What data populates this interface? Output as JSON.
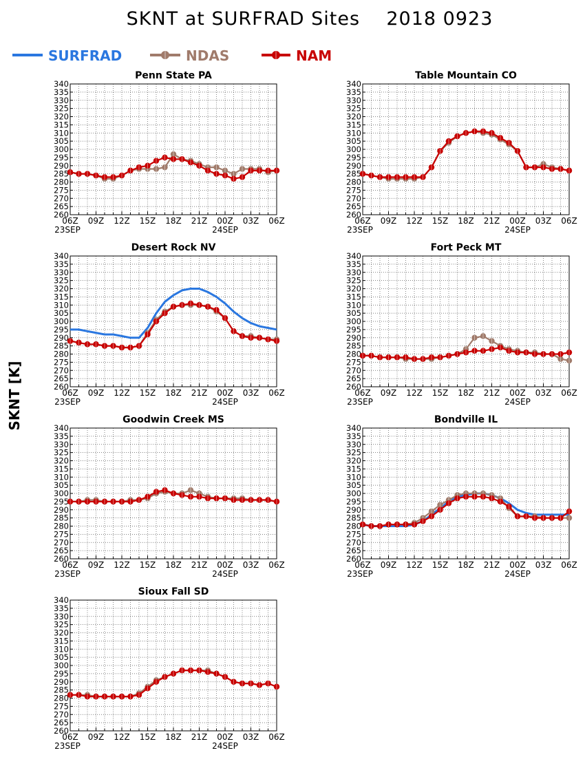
{
  "title": "SKNT at SURFRAD Sites    2018 0923",
  "y_axis_label": "SKNT [K]",
  "legend": [
    {
      "name": "SURFRAD",
      "color": "#2a77e0",
      "markers": false
    },
    {
      "name": "NDAS",
      "color": "#a07b6b",
      "markers": true
    },
    {
      "name": "NAM",
      "color": "#c80000",
      "markers": true
    }
  ],
  "chart_data": [
    {
      "type": "line",
      "title": "Penn State PA",
      "x_ticks": [
        "06Z",
        "09Z",
        "12Z",
        "15Z",
        "18Z",
        "21Z",
        "00Z",
        "03Z",
        "06Z"
      ],
      "date_labels": [
        "23SEP",
        "24SEP"
      ],
      "y_ticks": [
        260,
        265,
        270,
        275,
        280,
        285,
        290,
        295,
        300,
        305,
        310,
        315,
        320,
        325,
        330,
        335,
        340
      ],
      "ylim": [
        260,
        340
      ],
      "x_hours_since_06Z_23SEP": [
        0,
        1,
        2,
        3,
        4,
        5,
        6,
        7,
        8,
        9,
        10,
        11,
        12,
        13,
        14,
        15,
        16,
        17,
        18,
        19,
        20,
        21,
        22,
        23,
        24
      ],
      "series": [
        {
          "name": "NDAS",
          "values": [
            286,
            285,
            285,
            284,
            282,
            282,
            284,
            287,
            288,
            288,
            288,
            289,
            297,
            294,
            293,
            291,
            289,
            289,
            287,
            285,
            288,
            288,
            288,
            286,
            287
          ]
        },
        {
          "name": "NAM",
          "values": [
            286,
            285,
            285,
            284,
            283,
            283,
            284,
            287,
            289,
            290,
            293,
            295,
            294,
            294,
            292,
            290,
            287,
            285,
            284,
            282,
            283,
            287,
            287,
            287,
            287
          ]
        }
      ]
    },
    {
      "type": "line",
      "title": "Table Mountain CO",
      "x_ticks": [
        "06Z",
        "09Z",
        "12Z",
        "15Z",
        "18Z",
        "21Z",
        "00Z",
        "03Z",
        "06Z"
      ],
      "date_labels": [
        "23SEP",
        "24SEP"
      ],
      "y_ticks": [
        260,
        265,
        270,
        275,
        280,
        285,
        290,
        295,
        300,
        305,
        310,
        315,
        320,
        325,
        330,
        335,
        340
      ],
      "ylim": [
        260,
        340
      ],
      "x_hours_since_06Z_23SEP": [
        0,
        1,
        2,
        3,
        4,
        5,
        6,
        7,
        8,
        9,
        10,
        11,
        12,
        13,
        14,
        15,
        16,
        17,
        18,
        19,
        20,
        21,
        22,
        23,
        24
      ],
      "series": [
        {
          "name": "NDAS",
          "values": [
            285,
            284,
            283,
            282,
            282,
            282,
            282,
            283,
            289,
            299,
            304,
            308,
            310,
            311,
            310,
            309,
            306,
            303,
            299,
            289,
            289,
            291,
            289,
            288,
            287
          ]
        },
        {
          "name": "NAM",
          "values": [
            285,
            284,
            283,
            283,
            283,
            283,
            283,
            283,
            289,
            299,
            305,
            308,
            310,
            311,
            311,
            310,
            307,
            304,
            299,
            289,
            289,
            289,
            288,
            288,
            287
          ]
        }
      ]
    },
    {
      "type": "line",
      "title": "Desert Rock NV",
      "x_ticks": [
        "06Z",
        "09Z",
        "12Z",
        "15Z",
        "18Z",
        "21Z",
        "00Z",
        "03Z",
        "06Z"
      ],
      "date_labels": [
        "23SEP",
        "24SEP"
      ],
      "y_ticks": [
        260,
        265,
        270,
        275,
        280,
        285,
        290,
        295,
        300,
        305,
        310,
        315,
        320,
        325,
        330,
        335,
        340
      ],
      "ylim": [
        260,
        340
      ],
      "x_hours_since_06Z_23SEP": [
        0,
        1,
        2,
        3,
        4,
        5,
        6,
        7,
        8,
        9,
        10,
        11,
        12,
        13,
        14,
        15,
        16,
        17,
        18,
        19,
        20,
        21,
        22,
        23,
        24
      ],
      "series": [
        {
          "name": "SURFRAD",
          "values": [
            295,
            295,
            294,
            293,
            292,
            292,
            291,
            290,
            290,
            296,
            305,
            312,
            316,
            319,
            320,
            320,
            318,
            315,
            311,
            306,
            302,
            299,
            297,
            296,
            295
          ]
        },
        {
          "name": "NDAS",
          "values": [
            288,
            287,
            286,
            286,
            285,
            285,
            284,
            284,
            285,
            293,
            301,
            306,
            309,
            310,
            310,
            310,
            309,
            306,
            302,
            294,
            291,
            291,
            290,
            289,
            289
          ]
        },
        {
          "name": "NAM",
          "values": [
            288,
            287,
            286,
            286,
            285,
            285,
            284,
            284,
            285,
            292,
            300,
            305,
            309,
            310,
            311,
            310,
            309,
            307,
            302,
            294,
            291,
            290,
            290,
            289,
            288
          ]
        }
      ]
    },
    {
      "type": "line",
      "title": "Fort Peck MT",
      "x_ticks": [
        "06Z",
        "09Z",
        "12Z",
        "15Z",
        "18Z",
        "21Z",
        "00Z",
        "03Z",
        "06Z"
      ],
      "date_labels": [
        "23SEP",
        "24SEP"
      ],
      "y_ticks": [
        260,
        265,
        270,
        275,
        280,
        285,
        290,
        295,
        300,
        305,
        310,
        315,
        320,
        325,
        330,
        335,
        340
      ],
      "ylim": [
        260,
        340
      ],
      "x_hours_since_06Z_23SEP": [
        0,
        1,
        2,
        3,
        4,
        5,
        6,
        7,
        8,
        9,
        10,
        11,
        12,
        13,
        14,
        15,
        16,
        17,
        18,
        19,
        20,
        21,
        22,
        23,
        24
      ],
      "series": [
        {
          "name": "NDAS",
          "values": [
            279,
            279,
            278,
            278,
            278,
            277,
            277,
            277,
            277,
            278,
            279,
            280,
            283,
            290,
            291,
            288,
            285,
            283,
            282,
            281,
            281,
            280,
            280,
            277,
            276
          ]
        },
        {
          "name": "NAM",
          "values": [
            279,
            279,
            278,
            278,
            278,
            278,
            277,
            277,
            278,
            278,
            279,
            280,
            281,
            282,
            282,
            283,
            284,
            282,
            281,
            281,
            280,
            280,
            280,
            280,
            281
          ]
        }
      ]
    },
    {
      "type": "line",
      "title": "Goodwin Creek MS",
      "x_ticks": [
        "06Z",
        "09Z",
        "12Z",
        "15Z",
        "18Z",
        "21Z",
        "00Z",
        "03Z",
        "06Z"
      ],
      "date_labels": [
        "23SEP",
        "24SEP"
      ],
      "y_ticks": [
        260,
        265,
        270,
        275,
        280,
        285,
        290,
        295,
        300,
        305,
        310,
        315,
        320,
        325,
        330,
        335,
        340
      ],
      "ylim": [
        260,
        340
      ],
      "x_hours_since_06Z_23SEP": [
        0,
        1,
        2,
        3,
        4,
        5,
        6,
        7,
        8,
        9,
        10,
        11,
        12,
        13,
        14,
        15,
        16,
        17,
        18,
        19,
        20,
        21,
        22,
        23,
        24
      ],
      "series": [
        {
          "name": "NDAS",
          "values": [
            295,
            295,
            296,
            296,
            295,
            295,
            295,
            296,
            296,
            297,
            300,
            301,
            300,
            300,
            302,
            300,
            298,
            297,
            297,
            297,
            297,
            296,
            296,
            296,
            295
          ]
        },
        {
          "name": "NAM",
          "values": [
            295,
            295,
            295,
            295,
            295,
            295,
            295,
            295,
            296,
            298,
            301,
            302,
            300,
            299,
            298,
            298,
            297,
            297,
            297,
            296,
            296,
            296,
            296,
            296,
            295
          ]
        }
      ]
    },
    {
      "type": "line",
      "title": "Bondville IL",
      "x_ticks": [
        "06Z",
        "09Z",
        "12Z",
        "15Z",
        "18Z",
        "21Z",
        "00Z",
        "03Z",
        "06Z"
      ],
      "date_labels": [
        "23SEP",
        "24SEP"
      ],
      "y_ticks": [
        260,
        265,
        270,
        275,
        280,
        285,
        290,
        295,
        300,
        305,
        310,
        315,
        320,
        325,
        330,
        335,
        340
      ],
      "ylim": [
        260,
        340
      ],
      "x_hours_since_06Z_23SEP": [
        0,
        1,
        2,
        3,
        4,
        5,
        6,
        7,
        8,
        9,
        10,
        11,
        12,
        13,
        14,
        15,
        16,
        17,
        18,
        19,
        20,
        21,
        22,
        23,
        24
      ],
      "series": [
        {
          "name": "SURFRAD",
          "values": [
            281,
            280,
            280,
            280,
            280,
            280,
            281,
            283,
            287,
            291,
            295,
            298,
            299,
            300,
            300,
            299,
            297,
            294,
            290,
            288,
            287,
            287,
            287,
            287,
            287
          ]
        },
        {
          "name": "NDAS",
          "values": [
            281,
            280,
            280,
            281,
            281,
            281,
            282,
            285,
            289,
            293,
            296,
            299,
            300,
            300,
            300,
            299,
            297,
            291,
            286,
            286,
            286,
            285,
            285,
            285,
            285
          ]
        },
        {
          "name": "NAM",
          "values": [
            281,
            280,
            280,
            281,
            281,
            281,
            281,
            283,
            286,
            290,
            294,
            297,
            298,
            298,
            298,
            297,
            295,
            292,
            286,
            286,
            285,
            285,
            285,
            285,
            289
          ]
        }
      ]
    },
    {
      "type": "line",
      "title": "Sioux Fall SD",
      "x_ticks": [
        "06Z",
        "09Z",
        "12Z",
        "15Z",
        "18Z",
        "21Z",
        "00Z",
        "03Z",
        "06Z"
      ],
      "date_labels": [
        "23SEP",
        "24SEP"
      ],
      "y_ticks": [
        260,
        265,
        270,
        275,
        280,
        285,
        290,
        295,
        300,
        305,
        310,
        315,
        320,
        325,
        330,
        335,
        340
      ],
      "ylim": [
        260,
        340
      ],
      "x_hours_since_06Z_23SEP": [
        0,
        1,
        2,
        3,
        4,
        5,
        6,
        7,
        8,
        9,
        10,
        11,
        12,
        13,
        14,
        15,
        16,
        17,
        18,
        19,
        20,
        21,
        22,
        23,
        24
      ],
      "series": [
        {
          "name": "NDAS",
          "values": [
            282,
            282,
            282,
            281,
            281,
            281,
            281,
            281,
            283,
            287,
            291,
            293,
            295,
            297,
            297,
            297,
            297,
            295,
            293,
            290,
            289,
            289,
            288,
            289,
            287
          ]
        },
        {
          "name": "NAM",
          "values": [
            282,
            282,
            281,
            281,
            281,
            281,
            281,
            281,
            282,
            286,
            290,
            293,
            295,
            297,
            297,
            297,
            296,
            295,
            293,
            290,
            289,
            289,
            288,
            289,
            287
          ]
        }
      ]
    }
  ]
}
